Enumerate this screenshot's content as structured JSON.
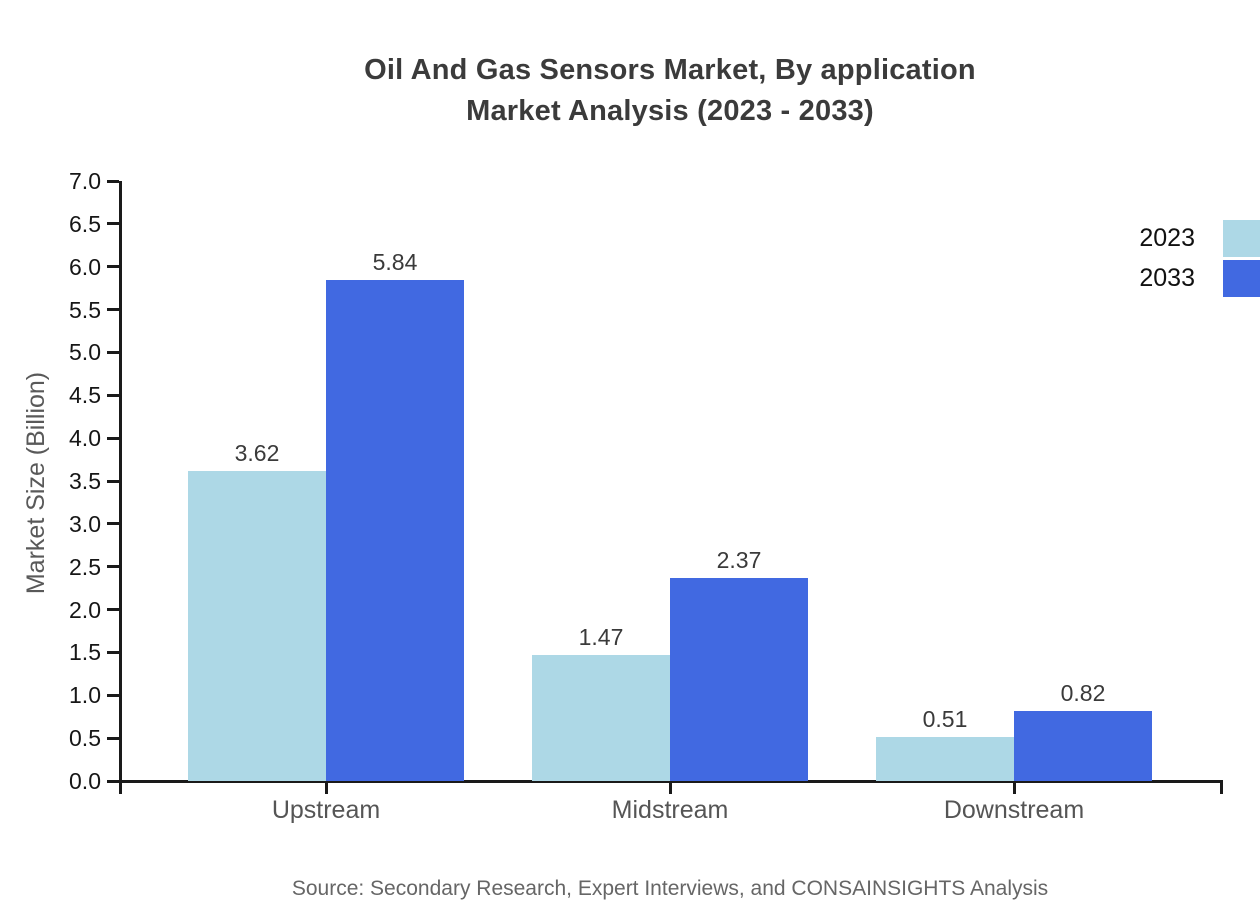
{
  "chart_data": {
    "type": "bar",
    "title": "Oil And Gas Sensors Market, By application\nMarket Analysis (2023 - 2033)",
    "ylabel": "Market Size (Billion)",
    "categories": [
      "Upstream",
      "Midstream",
      "Downstream"
    ],
    "series": [
      {
        "name": "2023",
        "color": "#ADD8E6",
        "values": [
          3.62,
          1.47,
          0.51
        ]
      },
      {
        "name": "2033",
        "color": "#4169E1",
        "values": [
          5.84,
          2.37,
          0.82
        ]
      }
    ],
    "ylim": [
      0,
      7
    ],
    "ytick_step": 0.5,
    "ytick_format_decimals": 1,
    "value_label_decimals": 2,
    "grid": false,
    "legend_position": "right-outside",
    "source": "Source: Secondary Research, Expert Interviews, and CONSAINSIGHTS Analysis"
  }
}
